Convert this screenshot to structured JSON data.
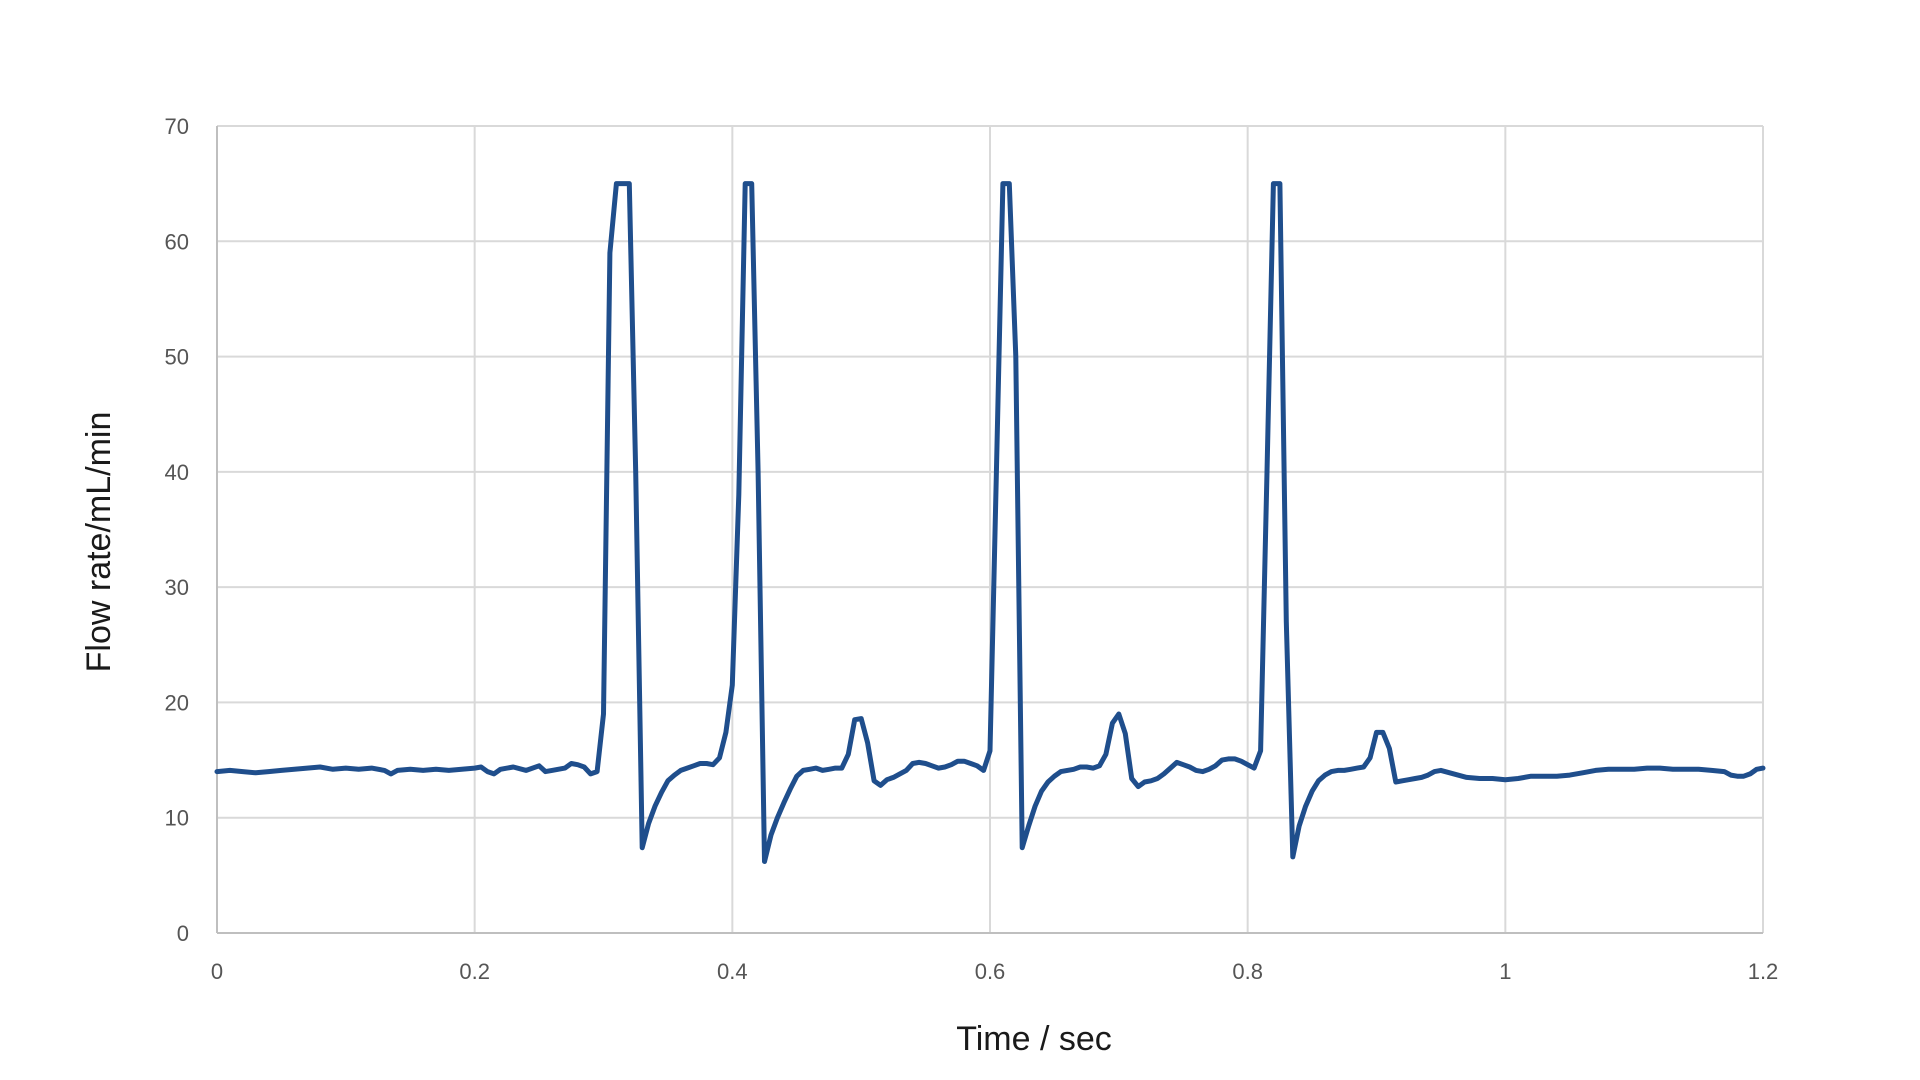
{
  "chart_data": {
    "type": "line",
    "title": "",
    "xlabel": "Time / sec",
    "ylabel": "Flow rate/mL/min",
    "xlim": [
      0,
      1.2
    ],
    "ylim": [
      0,
      70
    ],
    "x_ticks": [
      0,
      0.2,
      0.4,
      0.6,
      0.8,
      1,
      1.2
    ],
    "x_tick_labels": [
      "0",
      "0.2",
      "0.4",
      "0.6",
      "0.8",
      "1",
      "1.2"
    ],
    "y_ticks": [
      0,
      10,
      20,
      30,
      40,
      50,
      60,
      70
    ],
    "y_tick_labels": [
      "0",
      "10",
      "20",
      "30",
      "40",
      "50",
      "60",
      "70"
    ],
    "grid": true,
    "legend": "none",
    "line_color": "#1f4e8c",
    "series": [
      {
        "points": [
          [
            0,
            14
          ],
          [
            0.01,
            14.1
          ],
          [
            0.02,
            14.0
          ],
          [
            0.03,
            13.9
          ],
          [
            0.04,
            14.0
          ],
          [
            0.05,
            14.1
          ],
          [
            0.06,
            14.2
          ],
          [
            0.07,
            14.3
          ],
          [
            0.08,
            14.4
          ],
          [
            0.09,
            14.2
          ],
          [
            0.1,
            14.3
          ],
          [
            0.11,
            14.2
          ],
          [
            0.12,
            14.3
          ],
          [
            0.13,
            14.1
          ],
          [
            0.135,
            13.8
          ],
          [
            0.14,
            14.1
          ],
          [
            0.15,
            14.2
          ],
          [
            0.16,
            14.1
          ],
          [
            0.17,
            14.2
          ],
          [
            0.18,
            14.1
          ],
          [
            0.19,
            14.2
          ],
          [
            0.2,
            14.3
          ],
          [
            0.205,
            14.4
          ],
          [
            0.21,
            14.0
          ],
          [
            0.215,
            13.8
          ],
          [
            0.22,
            14.2
          ],
          [
            0.23,
            14.4
          ],
          [
            0.24,
            14.1
          ],
          [
            0.25,
            14.5
          ],
          [
            0.255,
            14.0
          ],
          [
            0.26,
            14.1
          ],
          [
            0.27,
            14.3
          ],
          [
            0.275,
            14.7
          ],
          [
            0.28,
            14.6
          ],
          [
            0.285,
            14.4
          ],
          [
            0.29,
            13.8
          ],
          [
            0.295,
            14.0
          ],
          [
            0.3,
            19
          ],
          [
            0.305,
            59
          ],
          [
            0.31,
            65
          ],
          [
            0.315,
            65
          ],
          [
            0.32,
            65
          ],
          [
            0.325,
            40
          ],
          [
            0.33,
            7.4
          ],
          [
            0.335,
            9.5
          ],
          [
            0.34,
            11
          ],
          [
            0.345,
            12.2
          ],
          [
            0.35,
            13.2
          ],
          [
            0.355,
            13.7
          ],
          [
            0.36,
            14.1
          ],
          [
            0.365,
            14.3
          ],
          [
            0.37,
            14.5
          ],
          [
            0.375,
            14.7
          ],
          [
            0.38,
            14.7
          ],
          [
            0.385,
            14.6
          ],
          [
            0.39,
            15.2
          ],
          [
            0.395,
            17.4
          ],
          [
            0.4,
            21.5
          ],
          [
            0.405,
            38
          ],
          [
            0.41,
            65
          ],
          [
            0.415,
            65
          ],
          [
            0.42,
            40
          ],
          [
            0.425,
            6.2
          ],
          [
            0.43,
            8.5
          ],
          [
            0.435,
            10
          ],
          [
            0.44,
            11.3
          ],
          [
            0.445,
            12.5
          ],
          [
            0.45,
            13.6
          ],
          [
            0.455,
            14.1
          ],
          [
            0.46,
            14.2
          ],
          [
            0.465,
            14.3
          ],
          [
            0.47,
            14.1
          ],
          [
            0.475,
            14.2
          ],
          [
            0.48,
            14.3
          ],
          [
            0.485,
            14.3
          ],
          [
            0.49,
            15.5
          ],
          [
            0.495,
            18.5
          ],
          [
            0.5,
            18.6
          ],
          [
            0.505,
            16.5
          ],
          [
            0.51,
            13.2
          ],
          [
            0.515,
            12.8
          ],
          [
            0.52,
            13.3
          ],
          [
            0.525,
            13.5
          ],
          [
            0.53,
            13.8
          ],
          [
            0.535,
            14.1
          ],
          [
            0.54,
            14.7
          ],
          [
            0.545,
            14.8
          ],
          [
            0.55,
            14.7
          ],
          [
            0.555,
            14.5
          ],
          [
            0.56,
            14.3
          ],
          [
            0.565,
            14.4
          ],
          [
            0.57,
            14.6
          ],
          [
            0.575,
            14.9
          ],
          [
            0.58,
            14.9
          ],
          [
            0.585,
            14.7
          ],
          [
            0.59,
            14.5
          ],
          [
            0.595,
            14.1
          ],
          [
            0.6,
            15.8
          ],
          [
            0.605,
            40
          ],
          [
            0.61,
            65
          ],
          [
            0.615,
            65
          ],
          [
            0.62,
            50
          ],
          [
            0.625,
            7.4
          ],
          [
            0.63,
            9.3
          ],
          [
            0.635,
            11
          ],
          [
            0.64,
            12.3
          ],
          [
            0.645,
            13.1
          ],
          [
            0.65,
            13.6
          ],
          [
            0.655,
            14.0
          ],
          [
            0.66,
            14.1
          ],
          [
            0.665,
            14.2
          ],
          [
            0.67,
            14.4
          ],
          [
            0.675,
            14.4
          ],
          [
            0.68,
            14.3
          ],
          [
            0.685,
            14.5
          ],
          [
            0.69,
            15.5
          ],
          [
            0.695,
            18.2
          ],
          [
            0.7,
            19.0
          ],
          [
            0.705,
            17.3
          ],
          [
            0.71,
            13.4
          ],
          [
            0.715,
            12.7
          ],
          [
            0.72,
            13.1
          ],
          [
            0.725,
            13.2
          ],
          [
            0.73,
            13.4
          ],
          [
            0.735,
            13.8
          ],
          [
            0.74,
            14.3
          ],
          [
            0.745,
            14.8
          ],
          [
            0.75,
            14.6
          ],
          [
            0.755,
            14.4
          ],
          [
            0.76,
            14.1
          ],
          [
            0.765,
            14.0
          ],
          [
            0.77,
            14.2
          ],
          [
            0.775,
            14.5
          ],
          [
            0.78,
            15.0
          ],
          [
            0.785,
            15.1
          ],
          [
            0.79,
            15.1
          ],
          [
            0.795,
            14.9
          ],
          [
            0.8,
            14.6
          ],
          [
            0.805,
            14.3
          ],
          [
            0.81,
            15.8
          ],
          [
            0.815,
            40
          ],
          [
            0.82,
            65
          ],
          [
            0.825,
            65
          ],
          [
            0.83,
            27
          ],
          [
            0.835,
            6.6
          ],
          [
            0.84,
            9.3
          ],
          [
            0.845,
            11
          ],
          [
            0.85,
            12.3
          ],
          [
            0.855,
            13.2
          ],
          [
            0.86,
            13.7
          ],
          [
            0.865,
            14.0
          ],
          [
            0.87,
            14.1
          ],
          [
            0.875,
            14.1
          ],
          [
            0.88,
            14.2
          ],
          [
            0.885,
            14.3
          ],
          [
            0.89,
            14.4
          ],
          [
            0.895,
            15.2
          ],
          [
            0.9,
            17.4
          ],
          [
            0.905,
            17.4
          ],
          [
            0.91,
            16.0
          ],
          [
            0.915,
            13.1
          ],
          [
            0.92,
            13.2
          ],
          [
            0.925,
            13.3
          ],
          [
            0.93,
            13.4
          ],
          [
            0.935,
            13.5
          ],
          [
            0.94,
            13.7
          ],
          [
            0.945,
            14.0
          ],
          [
            0.95,
            14.1
          ],
          [
            0.96,
            13.8
          ],
          [
            0.97,
            13.5
          ],
          [
            0.98,
            13.4
          ],
          [
            0.99,
            13.4
          ],
          [
            1.0,
            13.3
          ],
          [
            1.01,
            13.4
          ],
          [
            1.02,
            13.6
          ],
          [
            1.03,
            13.6
          ],
          [
            1.04,
            13.6
          ],
          [
            1.05,
            13.7
          ],
          [
            1.06,
            13.9
          ],
          [
            1.07,
            14.1
          ],
          [
            1.08,
            14.2
          ],
          [
            1.09,
            14.2
          ],
          [
            1.1,
            14.2
          ],
          [
            1.11,
            14.3
          ],
          [
            1.12,
            14.3
          ],
          [
            1.13,
            14.2
          ],
          [
            1.14,
            14.2
          ],
          [
            1.15,
            14.2
          ],
          [
            1.16,
            14.1
          ],
          [
            1.17,
            14.0
          ],
          [
            1.175,
            13.7
          ],
          [
            1.18,
            13.6
          ],
          [
            1.185,
            13.6
          ],
          [
            1.19,
            13.8
          ],
          [
            1.195,
            14.2
          ],
          [
            1.2,
            14.3
          ]
        ]
      }
    ]
  }
}
